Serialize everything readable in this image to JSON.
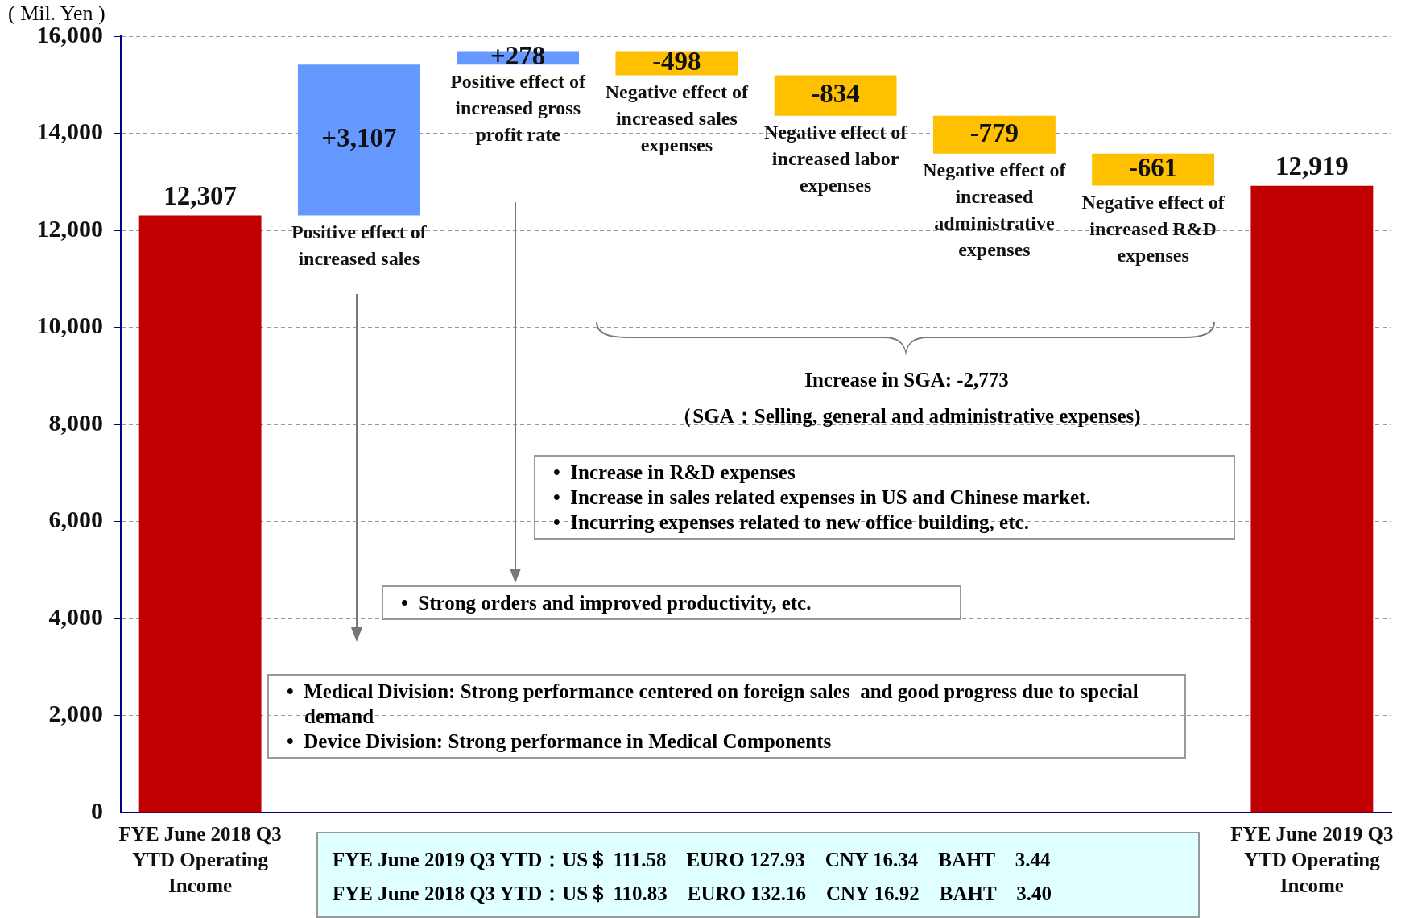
{
  "chart_data": {
    "type": "bar",
    "ylabel": "( Mil. Yen )",
    "categories": [
      "FYE June 2018 Q3 YTD Operating Income",
      "Positive effect of increased sales",
      "Positive effect of increased gross profit rate",
      "Negative effect of increased sales expenses",
      "Negative effect of increased labor expenses",
      "Negative effect of increased administrative expenses",
      "Negative effect of increased R&D expenses",
      "FYE June 2019 Q3 YTD Operating Income"
    ],
    "values": [
      12307,
      3107,
      278,
      -498,
      -834,
      -779,
      -661,
      12919
    ],
    "base": [
      0,
      12307,
      15414,
      15692,
      15194,
      14360,
      13581,
      0
    ],
    "colors": [
      "#c00000",
      "#6699ff",
      "#6699ff",
      "#ffc000",
      "#ffc000",
      "#ffc000",
      "#ffc000",
      "#c00000"
    ],
    "value_labels": [
      "12,307",
      "+3,107",
      "+278",
      "-498",
      "-834",
      "-779",
      "-661",
      "12,919"
    ],
    "ylim": [
      0,
      16000
    ],
    "yticks": [
      {
        "value": 0,
        "label": "0"
      },
      {
        "value": 2000,
        "label": "2,000"
      },
      {
        "value": 4000,
        "label": "4,000"
      },
      {
        "value": 6000,
        "label": "6,000"
      },
      {
        "value": 8000,
        "label": "8,000"
      },
      {
        "value": 10000,
        "label": "10,000"
      },
      {
        "value": 12000,
        "label": "12,000"
      },
      {
        "value": 14000,
        "label": "14,000"
      },
      {
        "value": 16000,
        "label": "16,000"
      }
    ],
    "grid": "y",
    "annotations": [
      "Increase in SGA:    -2,773",
      "（SGA：Selling, general and administrative expenses)",
      "•  Increase in R&D expenses",
      "•  Increase in sales related expenses in US and Chinese market.",
      "•  Incurring expenses related to new office building, etc.",
      "•  Strong orders and improved productivity, etc.",
      "•  Medical Division: Strong performance centered on foreign sales  and good progress due to special demand",
      "•  Device Division: Strong performance in Medical Components",
      "FYE June 2019 Q3 YTD：US＄ 111.58　EURO 127.93　CNY 16.34　BAHT　3.44",
      "FYE June 2018 Q3 YTD：US＄ 110.83　EURO 132.16　CNY 16.92　BAHT　3.40"
    ]
  }
}
